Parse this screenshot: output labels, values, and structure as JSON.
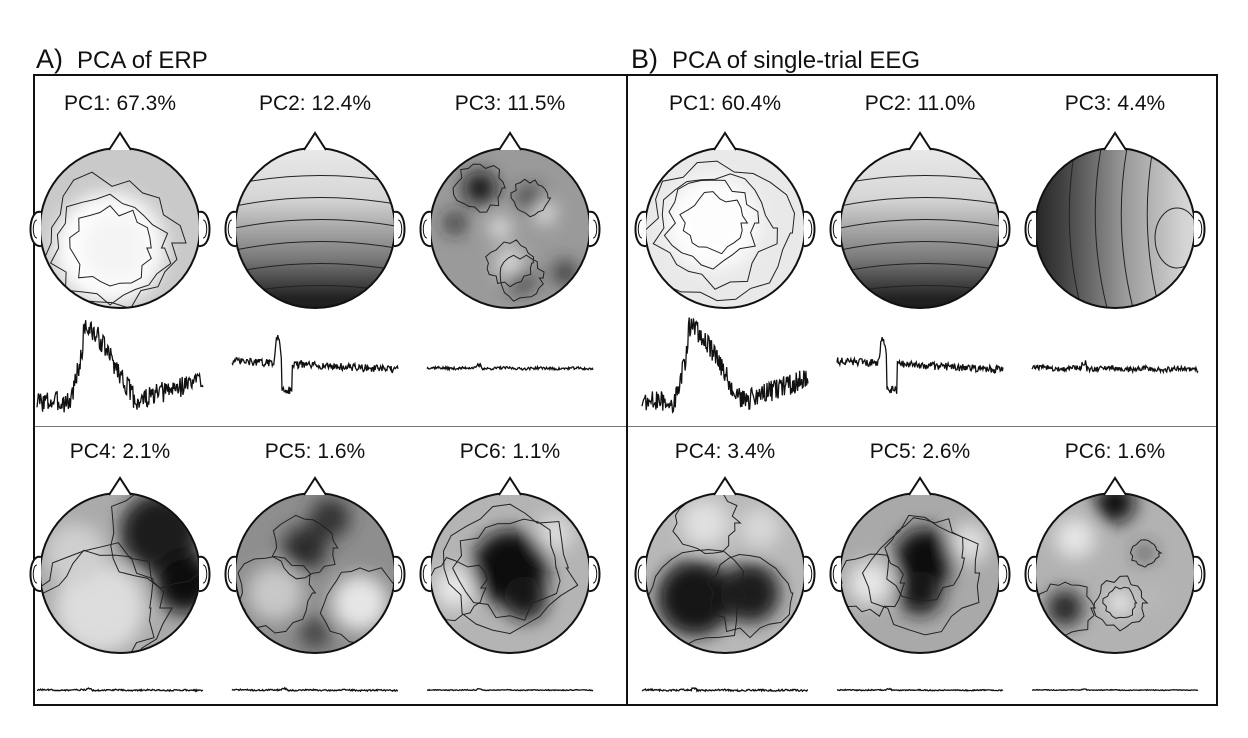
{
  "panels": [
    {
      "letter": "A)",
      "title": "PCA of ERP",
      "components": [
        {
          "label": "PC1: 67.3%",
          "trace_amp": 1.0,
          "pattern": "centro-parietal"
        },
        {
          "label": "PC2: 12.4%",
          "trace_amp": 0.45,
          "pattern": "frontal-occipital gradient"
        },
        {
          "label": "PC3: 11.5%",
          "trace_amp": 0.06,
          "pattern": "patchy"
        },
        {
          "label": "PC4: 2.1%",
          "trace_amp": 0.1,
          "pattern": "right-lateral"
        },
        {
          "label": "PC5: 1.6%",
          "trace_amp": 0.1,
          "pattern": "frontal-central"
        },
        {
          "label": "PC6: 1.1%",
          "trace_amp": 0.06,
          "pattern": "left-central"
        }
      ]
    },
    {
      "letter": "B)",
      "title": "PCA of single-trial EEG",
      "components": [
        {
          "label": "PC1: 60.4%",
          "trace_amp": 1.0,
          "pattern": "central"
        },
        {
          "label": "PC2: 11.0%",
          "trace_amp": 0.45,
          "pattern": "frontal-occipital gradient"
        },
        {
          "label": "PC3: 4.4%",
          "trace_amp": 0.12,
          "pattern": "left-right gradient"
        },
        {
          "label": "PC4: 3.4%",
          "trace_amp": 0.12,
          "pattern": "posterior"
        },
        {
          "label": "PC5: 2.6%",
          "trace_amp": 0.07,
          "pattern": "central"
        },
        {
          "label": "PC6: 1.6%",
          "trace_amp": 0.05,
          "pattern": "patchy"
        }
      ]
    }
  ],
  "colors": {
    "ink": "#111111",
    "frame": "#111111",
    "divider": "#777777"
  }
}
